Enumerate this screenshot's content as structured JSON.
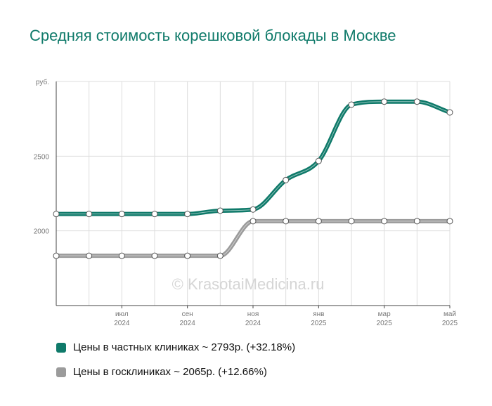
{
  "chart_data": {
    "type": "line",
    "title": "Средняя стоимость корешковой блокады в Москве",
    "yunit_label": "руб.",
    "ylim": [
      1500,
      3000
    ],
    "yticks": [
      2000,
      2500
    ],
    "x_tick_labels": [
      {
        "month": "июл",
        "year": "2024"
      },
      {
        "month": "сен",
        "year": "2024"
      },
      {
        "month": "ноя",
        "year": "2024"
      },
      {
        "month": "янв",
        "year": "2025"
      },
      {
        "month": "мар",
        "year": "2025"
      },
      {
        "month": "май",
        "year": "2025"
      }
    ],
    "x": [
      "2024-05",
      "2024-06",
      "2024-07",
      "2024-08",
      "2024-09",
      "2024-10",
      "2024-11",
      "2024-12",
      "2025-01",
      "2025-02",
      "2025-03",
      "2025-04",
      "2025-05"
    ],
    "series": [
      {
        "name": "Цены в частных клиниках",
        "color": "#0f7a6a",
        "values": [
          2113,
          2113,
          2113,
          2113,
          2113,
          2135,
          2143,
          2340,
          2468,
          2845,
          2865,
          2865,
          2793
        ]
      },
      {
        "name": "Цены в госклиниках",
        "color": "#9b9b9b",
        "values": [
          1833,
          1833,
          1833,
          1833,
          1833,
          1833,
          2065,
          2065,
          2065,
          2065,
          2065,
          2065,
          2065
        ]
      }
    ],
    "grid": true,
    "legend_position": "bottom",
    "watermark": "© KrasotaiMedicina.ru"
  },
  "legend": [
    {
      "label": "Цены в частных клиниках ~ 2793р. (+32.18%)",
      "color": "#0f7a6a"
    },
    {
      "label": "Цены в госклиниках ~ 2065р. (+12.66%)",
      "color": "#9b9b9b"
    }
  ]
}
